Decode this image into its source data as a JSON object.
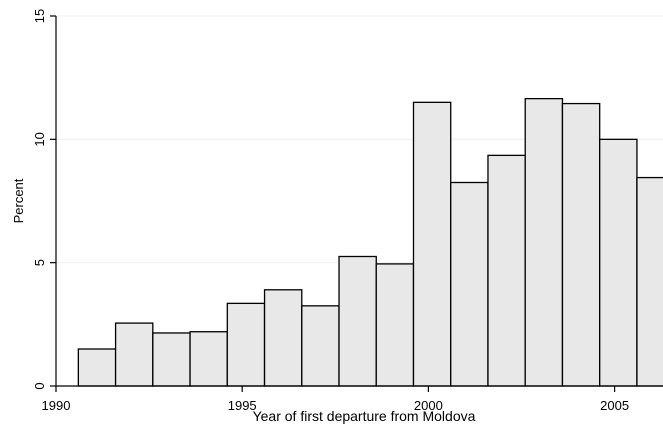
{
  "chart_data": {
    "type": "bar",
    "title": "",
    "xlabel": "Year of first departure from Moldova",
    "ylabel": "Percent",
    "xlim": [
      1990,
      2006.3
    ],
    "ylim": [
      0,
      15
    ],
    "x_ticks": [
      1990,
      1995,
      2000,
      2005
    ],
    "y_ticks": [
      0,
      5,
      10,
      15
    ],
    "grid": true,
    "bins": [
      {
        "start": 1990.6,
        "end": 1991.6,
        "value": 1.5
      },
      {
        "start": 1991.6,
        "end": 1992.6,
        "value": 2.55
      },
      {
        "start": 1992.6,
        "end": 1993.6,
        "value": 2.15
      },
      {
        "start": 1993.6,
        "end": 1994.6,
        "value": 2.2
      },
      {
        "start": 1994.6,
        "end": 1995.6,
        "value": 3.35
      },
      {
        "start": 1995.6,
        "end": 1996.6,
        "value": 3.9
      },
      {
        "start": 1996.6,
        "end": 1997.6,
        "value": 3.25
      },
      {
        "start": 1997.6,
        "end": 1998.6,
        "value": 5.25
      },
      {
        "start": 1998.6,
        "end": 1999.6,
        "value": 4.95
      },
      {
        "start": 1999.6,
        "end": 2000.6,
        "value": 11.5
      },
      {
        "start": 2000.6,
        "end": 2001.6,
        "value": 8.25
      },
      {
        "start": 2001.6,
        "end": 2002.6,
        "value": 9.35
      },
      {
        "start": 2002.6,
        "end": 2003.6,
        "value": 11.65
      },
      {
        "start": 2003.6,
        "end": 2004.6,
        "value": 11.45
      },
      {
        "start": 2004.6,
        "end": 2005.6,
        "value": 10.0
      },
      {
        "start": 2005.6,
        "end": 2006.6,
        "value": 8.45
      }
    ],
    "colors": {
      "bar_fill": "#e8e8e8",
      "bar_stroke": "#000000",
      "grid": "#eaf2f3"
    }
  }
}
